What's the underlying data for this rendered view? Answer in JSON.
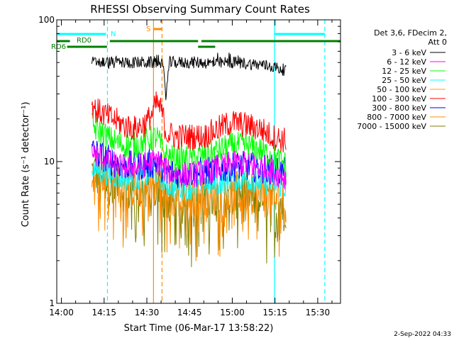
{
  "chart_data": {
    "type": "line",
    "title": "RHESSI Observing Summary Count Rates",
    "xlabel": "Start Time (06-Mar-17 13:58:22)",
    "ylabel": "Count Rate (s⁻¹ detector⁻¹)",
    "yscale": "log",
    "ylim": [
      1,
      100
    ],
    "xlim": [
      "13:58:22",
      "15:38:00"
    ],
    "x_ticks": [
      "14:00",
      "14:15",
      "14:30",
      "14:45",
      "15:00",
      "15:15",
      "15:30"
    ],
    "y_ticks": [
      "1",
      "10",
      "100"
    ],
    "legend_header": [
      "Det 3,6, FDecim 2,",
      "Att 0"
    ],
    "legend_position": "right",
    "series": [
      {
        "name": "3 - 6 keV",
        "color": "#000000",
        "x": [
          "14:10:40",
          "14:14:00",
          "14:18:00",
          "14:22:00",
          "14:26:00",
          "14:30:00",
          "14:33:30",
          "14:35:30",
          "14:36:40",
          "14:38:00",
          "14:42:00",
          "14:46:00",
          "14:50:00",
          "14:54:00",
          "14:58:00",
          "15:02:00",
          "15:06:00",
          "15:10:00",
          "15:14:00",
          "15:17:00",
          "15:19:00"
        ],
        "y": [
          50,
          50,
          50,
          50,
          50,
          50,
          50,
          50,
          30,
          50,
          50,
          50,
          50,
          49,
          50,
          50,
          49,
          48,
          47,
          45,
          44
        ]
      },
      {
        "name": "6 - 12 keV",
        "color": "#ff00ff",
        "x": [
          "14:10:40",
          "14:14:00",
          "14:18:00",
          "14:22:00",
          "14:26:00",
          "14:30:00",
          "14:33:30",
          "14:36:40",
          "14:40:00",
          "14:45:00",
          "14:50:00",
          "14:55:00",
          "15:00:00",
          "15:05:00",
          "15:10:00",
          "15:14:00",
          "15:19:00"
        ],
        "y": [
          11.5,
          10.6,
          9.6,
          9.1,
          9.1,
          9.6,
          10.1,
          8.6,
          8.1,
          8.1,
          8.3,
          9.1,
          9.6,
          9.6,
          9.1,
          8.6,
          7.6
        ]
      },
      {
        "name": "12 - 25 keV",
        "color": "#00ff00",
        "x": [
          "14:10:40",
          "14:12:00",
          "14:14:00",
          "14:18:00",
          "14:22:00",
          "14:26:00",
          "14:30:00",
          "14:33:30",
          "14:36:40",
          "14:40:00",
          "14:45:00",
          "14:50:00",
          "14:55:00",
          "15:00:00",
          "15:05:00",
          "15:10:00",
          "15:14:00",
          "15:19:00"
        ],
        "y": [
          18,
          17,
          16,
          14,
          13,
          13,
          14,
          15,
          11,
          10.5,
          10.5,
          11,
          12,
          13,
          13,
          12,
          11,
          9.5
        ]
      },
      {
        "name": "25 - 50 keV",
        "color": "#00ffff",
        "x": [
          "14:10:40",
          "14:14:00",
          "14:18:00",
          "14:22:00",
          "14:26:00",
          "14:30:00",
          "14:33:30",
          "14:36:40",
          "14:40:00",
          "14:45:00",
          "14:50:00",
          "14:55:00",
          "15:00:00",
          "15:05:00",
          "15:10:00",
          "15:14:00",
          "15:19:00"
        ],
        "y": [
          9,
          8.5,
          8,
          7.5,
          7.5,
          8,
          8.3,
          7,
          6.5,
          6.5,
          6.8,
          7,
          7.5,
          7.5,
          7.2,
          7,
          6.5
        ]
      },
      {
        "name": "50 - 100 keV",
        "color": "#ffa500",
        "x": [],
        "y": []
      },
      {
        "name": "100 - 300 keV",
        "color": "#ff0000",
        "x": [
          "14:10:40",
          "14:12:00",
          "14:14:00",
          "14:18:00",
          "14:22:00",
          "14:26:00",
          "14:30:00",
          "14:32:00",
          "14:33:30",
          "14:35:30",
          "14:36:40",
          "14:40:00",
          "14:45:00",
          "14:50:00",
          "14:55:00",
          "15:00:00",
          "15:05:00",
          "15:10:00",
          "15:14:00",
          "15:19:00"
        ],
        "y": [
          26,
          23,
          22,
          20,
          18,
          17,
          19,
          22,
          26,
          22,
          16,
          15,
          15,
          15,
          17,
          19,
          18,
          17,
          15,
          14
        ]
      },
      {
        "name": "300 - 800 keV",
        "color": "#0000ff",
        "x": [
          "14:10:40",
          "14:14:00",
          "14:18:00",
          "14:22:00",
          "14:26:00",
          "14:30:00",
          "14:33:30",
          "14:36:40",
          "14:40:00",
          "14:45:00",
          "14:50:00",
          "14:55:00",
          "15:00:00",
          "15:05:00",
          "15:10:00",
          "15:14:00",
          "15:19:00"
        ],
        "y": [
          12,
          11,
          10,
          9.5,
          9.3,
          9.5,
          10,
          8.5,
          8.3,
          8.3,
          8.5,
          8.8,
          9.3,
          9.3,
          9,
          8.8,
          8.3
        ]
      },
      {
        "name": "800 - 7000 keV",
        "color": "#ff8c00",
        "x": [
          "14:10:40",
          "14:14:00",
          "14:18:00",
          "14:22:00",
          "14:26:00",
          "14:30:00",
          "14:33:30",
          "14:36:40",
          "14:40:00",
          "14:45:00",
          "14:50:00",
          "14:55:00",
          "15:00:00",
          "15:05:00",
          "15:10:00",
          "15:14:00",
          "15:19:00"
        ],
        "y": [
          9.3,
          8.5,
          7.5,
          6.8,
          6.5,
          6.5,
          7,
          5.8,
          5.5,
          5.5,
          5.6,
          5.8,
          6,
          6,
          6,
          5.5,
          5
        ]
      },
      {
        "name": "7000 - 15000 keV",
        "color": "#808000",
        "x": [
          "14:10:40",
          "14:14:00",
          "14:18:00",
          "14:22:00",
          "14:26:00",
          "14:30:00",
          "14:33:30",
          "14:36:40",
          "14:40:00",
          "14:45:00",
          "14:50:00",
          "14:55:00",
          "15:00:00",
          "15:05:00",
          "15:10:00",
          "15:14:00",
          "15:19:00"
        ],
        "y": [
          8.5,
          8,
          7,
          6.5,
          6,
          6.2,
          6.5,
          5.5,
          5.2,
          5.2,
          5.3,
          5.5,
          5.8,
          5.8,
          5.6,
          5.3,
          5
        ]
      }
    ],
    "vertical_markers": [
      {
        "time": "14:16:10",
        "color": "#00ffff",
        "style": "dashed"
      },
      {
        "time": "15:14:50",
        "color": "#00ffff",
        "style": "solid"
      },
      {
        "time": "15:32:30",
        "color": "#00ffff",
        "style": "dashed"
      },
      {
        "time": "14:32:20",
        "color": "#ff8c00",
        "style": "solid"
      },
      {
        "time": "14:35:20",
        "color": "#ff8c00",
        "style": "dashed"
      }
    ],
    "flag_bars": [
      {
        "label": "N",
        "color": "#00ffff",
        "level": 1,
        "segments": [
          [
            "13:58:22",
            "14:15:40"
          ],
          [
            "15:14:50",
            "15:32:30"
          ]
        ]
      },
      {
        "label": "S",
        "color": "#ff8c00",
        "level": 0,
        "segments": [
          [
            "14:32:20",
            "14:35:20"
          ]
        ]
      },
      {
        "label": "RD0",
        "color": "#008000",
        "level": 2,
        "segments": [
          [
            "13:58:22",
            "14:03:00"
          ],
          [
            "14:17:00",
            "14:48:00"
          ],
          [
            "14:49:10",
            "15:38:00"
          ]
        ]
      },
      {
        "label": "RD6",
        "color": "#008000",
        "level": 3,
        "segments": [
          [
            "14:02:00",
            "14:16:00"
          ],
          [
            "14:48:00",
            "14:54:00"
          ]
        ]
      }
    ],
    "footer_timestamp": "2-Sep-2022 04:33"
  }
}
